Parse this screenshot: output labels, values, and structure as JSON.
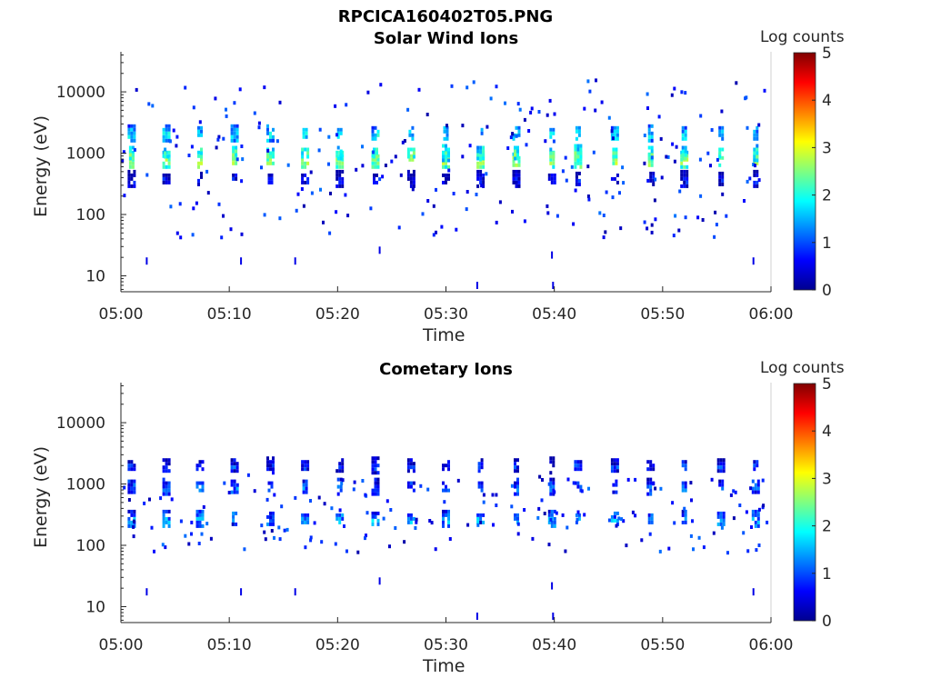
{
  "header": {
    "filename": "RPCICA160402T05.PNG"
  },
  "colors": {
    "colormap": "jet",
    "axis": "#262626",
    "background": "#ffffff"
  },
  "chart_data": [
    {
      "type": "heatmap",
      "title": "Solar Wind Ions",
      "xlabel": "Time",
      "ylabel": "Energy (eV)",
      "x_range": [
        "05:00",
        "06:00"
      ],
      "x_ticks": [
        "05:00",
        "05:10",
        "05:20",
        "05:30",
        "05:40",
        "05:50",
        "06:00"
      ],
      "x_tick_minutes": [
        0,
        10,
        20,
        30,
        40,
        50,
        60
      ],
      "y_scale": "log",
      "ylim": [
        5.5,
        45000
      ],
      "y_ticks": [
        10,
        100,
        1000,
        10000
      ],
      "y_tick_labels": [
        "10",
        "100",
        "1000",
        "10000"
      ],
      "colorbar": {
        "label": "Log counts",
        "range": [
          0,
          5
        ],
        "ticks": [
          "0",
          "1",
          "2",
          "3",
          "4",
          "5"
        ]
      },
      "grid": false,
      "pulse_times_min": [
        1.0,
        4.2,
        7.3,
        10.5,
        13.8,
        17.0,
        20.2,
        23.5,
        26.8,
        30.0,
        33.2,
        36.5,
        39.8,
        42.2,
        45.6,
        48.9,
        52.0,
        55.4,
        58.6
      ],
      "bands": [
        {
          "energy_ev": 780,
          "log_counts": 2.6
        },
        {
          "energy_ev": 1000,
          "log_counts": 2.2
        },
        {
          "energy_ev": 2100,
          "log_counts": 1.7
        },
        {
          "energy_ev": 380,
          "log_counts": 0.6
        }
      ],
      "scatter_energy_range_ev": [
        40,
        18000
      ]
    },
    {
      "type": "heatmap",
      "title": "Cometary Ions",
      "xlabel": "Time",
      "ylabel": "Energy (eV)",
      "x_range": [
        "05:00",
        "06:00"
      ],
      "x_ticks": [
        "05:00",
        "05:10",
        "05:20",
        "05:30",
        "05:40",
        "05:50",
        "06:00"
      ],
      "x_tick_minutes": [
        0,
        10,
        20,
        30,
        40,
        50,
        60
      ],
      "y_scale": "log",
      "ylim": [
        5.5,
        45000
      ],
      "y_ticks": [
        10,
        100,
        1000,
        10000
      ],
      "y_tick_labels": [
        "10",
        "100",
        "1000",
        "10000"
      ],
      "colorbar": {
        "label": "Log counts",
        "range": [
          0,
          5
        ],
        "ticks": [
          "0",
          "1",
          "2",
          "3",
          "4",
          "5"
        ]
      },
      "grid": false,
      "pulse_times_min": [
        1.0,
        4.2,
        7.3,
        10.5,
        13.8,
        17.0,
        20.2,
        23.5,
        26.8,
        30.0,
        33.2,
        36.5,
        39.8,
        42.2,
        45.6,
        48.9,
        52.0,
        55.4,
        58.6
      ],
      "bands": [
        {
          "energy_ev": 270,
          "log_counts": 1.4
        },
        {
          "energy_ev": 900,
          "log_counts": 1.1
        },
        {
          "energy_ev": 2000,
          "log_counts": 0.8
        }
      ],
      "scatter_energy_range_ev": [
        80,
        1500
      ]
    }
  ]
}
